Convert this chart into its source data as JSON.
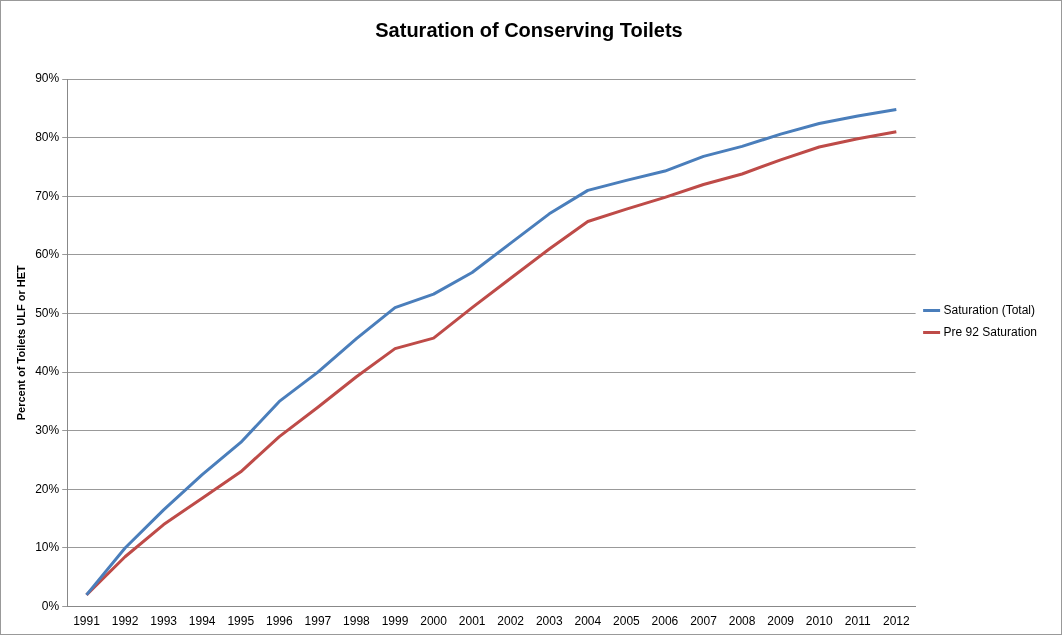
{
  "chart_data": {
    "type": "line",
    "title": "Saturation of Conserving Toilets",
    "ylabel": "Percent of Toilets ULF or HET",
    "categories": [
      "1991",
      "1992",
      "1993",
      "1994",
      "1995",
      "1996",
      "1997",
      "1998",
      "1999",
      "2000",
      "2001",
      "2002",
      "2003",
      "2004",
      "2005",
      "2006",
      "2007",
      "2008",
      "2009",
      "2010",
      "2011",
      "2012"
    ],
    "series": [
      {
        "name": "Saturation (Total)",
        "color": "#4a7ebb",
        "values": [
          2,
          10,
          16.5,
          22.5,
          28,
          35,
          40,
          45.7,
          51,
          53.3,
          57,
          62,
          67,
          71,
          72.7,
          74.3,
          76.8,
          78.5,
          80.6,
          82.4,
          83.7,
          84.8
        ]
      },
      {
        "name": "Pre 92 Saturation",
        "color": "#be4b48",
        "values": [
          2,
          8.5,
          14,
          18.5,
          23,
          29,
          34,
          39.2,
          44,
          45.8,
          51,
          56,
          61,
          65.7,
          67.8,
          69.8,
          72,
          73.8,
          76.2,
          78.4,
          79.8,
          81
        ]
      }
    ],
    "ylim": [
      0,
      90
    ],
    "yticks": [
      {
        "value": 0,
        "label": "0%"
      },
      {
        "value": 10,
        "label": "10%"
      },
      {
        "value": 20,
        "label": "20%"
      },
      {
        "value": 30,
        "label": "30%"
      },
      {
        "value": 40,
        "label": "40%"
      },
      {
        "value": 50,
        "label": "50%"
      },
      {
        "value": 60,
        "label": "60%"
      },
      {
        "value": 70,
        "label": "70%"
      },
      {
        "value": 80,
        "label": "80%"
      },
      {
        "value": 90,
        "label": "90%"
      }
    ],
    "grid": "y",
    "legend": "right",
    "marker": "none",
    "line_style": "solid"
  }
}
